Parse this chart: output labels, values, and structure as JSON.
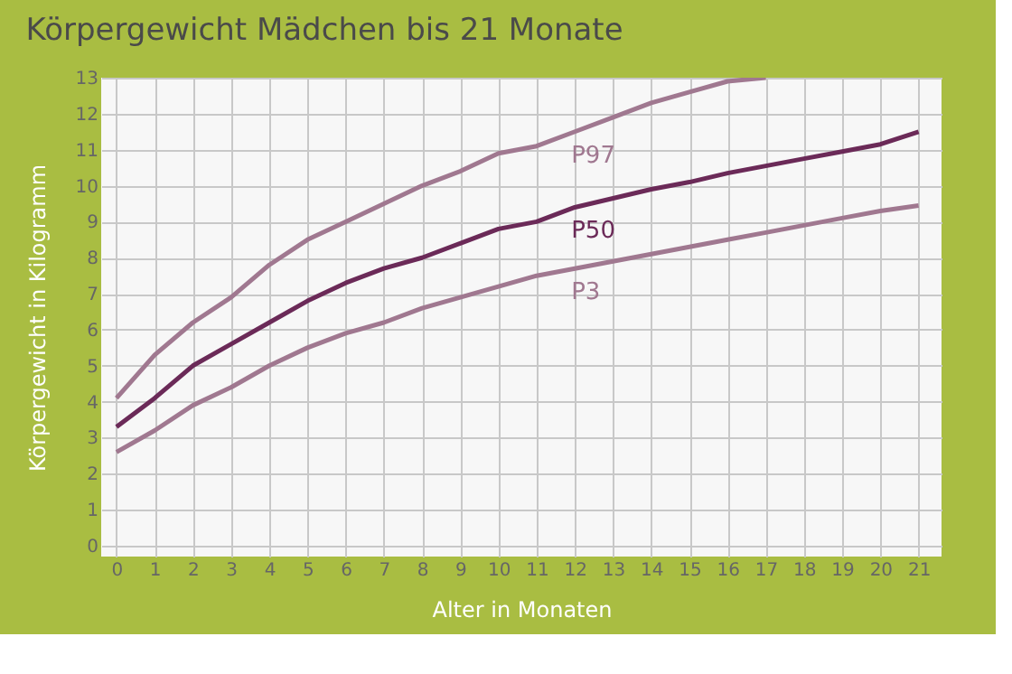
{
  "chart_data": {
    "type": "line",
    "title": "Körpergewicht Mädchen bis 21 Monate",
    "xlabel": "Alter in Monaten",
    "ylabel": "Körpergewicht in Kilogramm",
    "x": [
      0,
      1,
      2,
      3,
      4,
      5,
      6,
      7,
      8,
      9,
      10,
      11,
      12,
      13,
      14,
      15,
      16,
      17,
      18,
      19,
      20,
      21
    ],
    "series": [
      {
        "name": "P97",
        "color": "#a07890",
        "values": [
          4.1,
          5.3,
          6.2,
          6.9,
          7.8,
          8.5,
          9.0,
          9.5,
          10.0,
          10.4,
          10.9,
          11.1,
          11.5,
          11.9,
          12.3,
          12.6,
          12.9,
          13.0,
          null,
          null,
          null,
          null
        ]
      },
      {
        "name": "P50",
        "color": "#6b2a58",
        "values": [
          3.3,
          4.1,
          5.0,
          5.6,
          6.2,
          6.8,
          7.3,
          7.7,
          8.0,
          8.4,
          8.8,
          9.0,
          9.4,
          9.65,
          9.9,
          10.1,
          10.35,
          10.55,
          10.75,
          10.95,
          11.15,
          11.5
        ]
      },
      {
        "name": "P3",
        "color": "#a07890",
        "values": [
          2.6,
          3.2,
          3.9,
          4.4,
          5.0,
          5.5,
          5.9,
          6.2,
          6.6,
          6.9,
          7.2,
          7.5,
          7.7,
          7.9,
          8.1,
          8.3,
          8.5,
          8.7,
          8.9,
          9.1,
          9.3,
          9.45
        ]
      }
    ],
    "xlim": [
      -0.4,
      21.6
    ],
    "xticks": [
      0,
      1,
      2,
      3,
      4,
      5,
      6,
      7,
      8,
      9,
      10,
      11,
      12,
      13,
      14,
      15,
      16,
      17,
      18,
      19,
      20,
      21
    ],
    "ylim": [
      -0.3,
      13
    ],
    "yticks": [
      0,
      1,
      2,
      3,
      4,
      5,
      6,
      7,
      8,
      9,
      10,
      11,
      12,
      13
    ],
    "grid": true,
    "legend": false,
    "marker": "none",
    "line_style": "solid"
  }
}
